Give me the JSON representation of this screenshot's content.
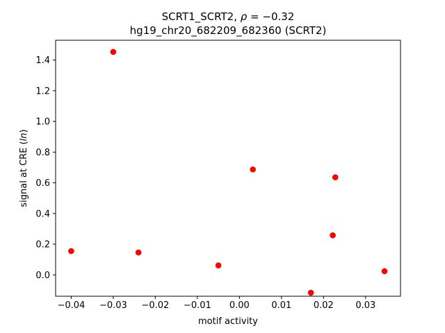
{
  "chart_data": {
    "type": "scatter",
    "title_line1_prefix": "SCRT1_SCRT2, ",
    "title_line1_rho": "ρ",
    "title_line1_suffix": " = −0.32",
    "title_line2": "hg19_chr20_682209_682360 (SCRT2)",
    "xlabel": "motif activity",
    "ylabel_prefix": "signal at CRE (",
    "ylabel_italic": "ln",
    "ylabel_suffix": ")",
    "xlim": [
      -0.0437,
      0.0383
    ],
    "ylim": [
      -0.1389,
      1.5289
    ],
    "xticks": [
      {
        "value": -0.04,
        "label": "−0.04"
      },
      {
        "value": -0.03,
        "label": "−0.03"
      },
      {
        "value": -0.02,
        "label": "−0.02"
      },
      {
        "value": -0.01,
        "label": "−0.01"
      },
      {
        "value": 0.0,
        "label": "0.00"
      },
      {
        "value": 0.01,
        "label": "0.01"
      },
      {
        "value": 0.02,
        "label": "0.02"
      },
      {
        "value": 0.03,
        "label": "0.03"
      }
    ],
    "yticks": [
      {
        "value": 0.0,
        "label": "0.0"
      },
      {
        "value": 0.2,
        "label": "0.2"
      },
      {
        "value": 0.4,
        "label": "0.4"
      },
      {
        "value": 0.6,
        "label": "0.6"
      },
      {
        "value": 0.8,
        "label": "0.8"
      },
      {
        "value": 1.0,
        "label": "1.0"
      },
      {
        "value": 1.2,
        "label": "1.2"
      },
      {
        "value": 1.4,
        "label": "1.4"
      }
    ],
    "grid": false,
    "marker_color": "#ff0000",
    "points": [
      {
        "x": -0.04,
        "y": 0.155
      },
      {
        "x": -0.03,
        "y": 1.453
      },
      {
        "x": -0.024,
        "y": 0.146
      },
      {
        "x": -0.005,
        "y": 0.062
      },
      {
        "x": 0.0032,
        "y": 0.687
      },
      {
        "x": 0.017,
        "y": -0.116
      },
      {
        "x": 0.0222,
        "y": 0.258
      },
      {
        "x": 0.0228,
        "y": 0.636
      },
      {
        "x": 0.0345,
        "y": 0.024
      }
    ]
  }
}
